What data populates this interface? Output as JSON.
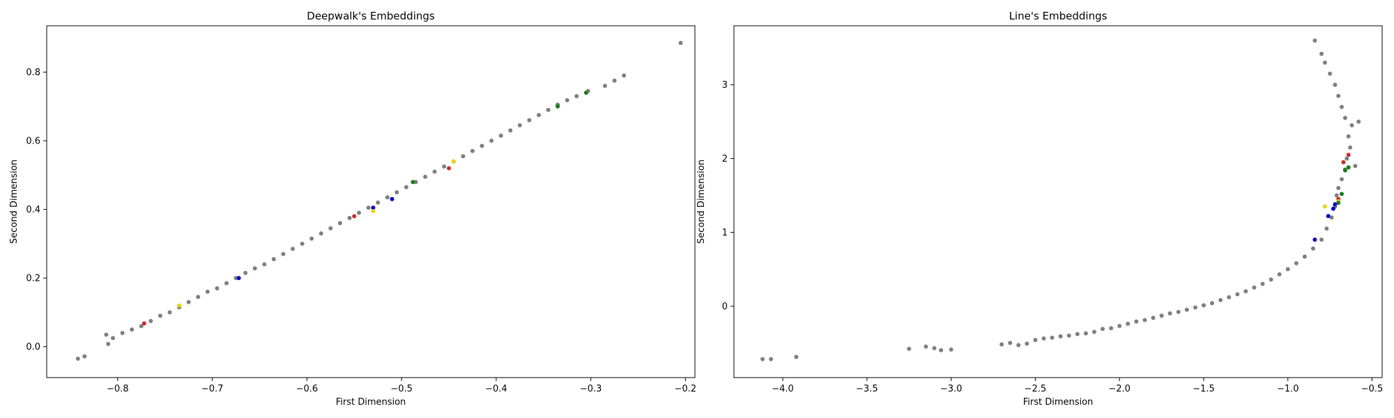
{
  "chart_data": [
    {
      "type": "scatter",
      "title": "Deepwalk's Embeddings",
      "xlabel": "First Dimension",
      "ylabel": "Second Dimension",
      "xlim": [
        -0.875,
        -0.19
      ],
      "ylim": [
        -0.09,
        0.935
      ],
      "xticks": [
        -0.8,
        -0.7,
        -0.6,
        -0.5,
        -0.4,
        -0.3,
        -0.2
      ],
      "xtick_labels": [
        "−0.8",
        "−0.7",
        "−0.6",
        "−0.5",
        "−0.4",
        "−0.3",
        "−0.2"
      ],
      "yticks": [
        0.0,
        0.2,
        0.4,
        0.6,
        0.8
      ],
      "ytick_labels": [
        "0.0",
        "0.2",
        "0.4",
        "0.6",
        "0.8"
      ],
      "grid": false,
      "series": [
        {
          "color": "#7f7f7f",
          "points": [
            [
              -0.842,
              -0.035
            ],
            [
              -0.835,
              -0.028
            ],
            [
              -0.812,
              0.035
            ],
            [
              -0.81,
              0.008
            ],
            [
              -0.805,
              0.025
            ],
            [
              -0.795,
              0.04
            ],
            [
              -0.785,
              0.05
            ],
            [
              -0.775,
              0.06
            ],
            [
              -0.765,
              0.075
            ],
            [
              -0.755,
              0.09
            ],
            [
              -0.745,
              0.1
            ],
            [
              -0.735,
              0.115
            ],
            [
              -0.725,
              0.13
            ],
            [
              -0.715,
              0.145
            ],
            [
              -0.705,
              0.16
            ],
            [
              -0.695,
              0.17
            ],
            [
              -0.685,
              0.185
            ],
            [
              -0.675,
              0.2
            ],
            [
              -0.665,
              0.215
            ],
            [
              -0.655,
              0.228
            ],
            [
              -0.645,
              0.24
            ],
            [
              -0.635,
              0.255
            ],
            [
              -0.625,
              0.27
            ],
            [
              -0.615,
              0.285
            ],
            [
              -0.605,
              0.3
            ],
            [
              -0.595,
              0.315
            ],
            [
              -0.585,
              0.33
            ],
            [
              -0.575,
              0.345
            ],
            [
              -0.565,
              0.36
            ],
            [
              -0.555,
              0.375
            ],
            [
              -0.545,
              0.39
            ],
            [
              -0.535,
              0.405
            ],
            [
              -0.525,
              0.42
            ],
            [
              -0.515,
              0.435
            ],
            [
              -0.505,
              0.45
            ],
            [
              -0.495,
              0.465
            ],
            [
              -0.485,
              0.48
            ],
            [
              -0.475,
              0.495
            ],
            [
              -0.465,
              0.51
            ],
            [
              -0.455,
              0.525
            ],
            [
              -0.445,
              0.54
            ],
            [
              -0.435,
              0.555
            ],
            [
              -0.425,
              0.57
            ],
            [
              -0.415,
              0.585
            ],
            [
              -0.405,
              0.6
            ],
            [
              -0.395,
              0.615
            ],
            [
              -0.385,
              0.63
            ],
            [
              -0.375,
              0.645
            ],
            [
              -0.365,
              0.66
            ],
            [
              -0.355,
              0.675
            ],
            [
              -0.345,
              0.69
            ],
            [
              -0.335,
              0.705
            ],
            [
              -0.325,
              0.718
            ],
            [
              -0.315,
              0.73
            ],
            [
              -0.303,
              0.745
            ],
            [
              -0.285,
              0.76
            ],
            [
              -0.275,
              0.775
            ],
            [
              -0.265,
              0.79
            ],
            [
              -0.205,
              0.885
            ]
          ]
        },
        {
          "color": "#d62728",
          "points": [
            [
              -0.772,
              0.068
            ],
            [
              -0.55,
              0.38
            ],
            [
              -0.45,
              0.52
            ]
          ]
        },
        {
          "color": "#0000cc",
          "points": [
            [
              -0.672,
              0.2
            ],
            [
              -0.53,
              0.405
            ],
            [
              -0.51,
              0.43
            ]
          ]
        },
        {
          "color": "#e6d31a",
          "points": [
            [
              -0.735,
              0.12
            ],
            [
              -0.53,
              0.395
            ],
            [
              -0.445,
              0.54
            ]
          ]
        },
        {
          "color": "#1a7a1a",
          "points": [
            [
              -0.488,
              0.48
            ],
            [
              -0.335,
              0.7
            ],
            [
              -0.305,
              0.74
            ]
          ]
        }
      ]
    },
    {
      "type": "scatter",
      "title": "Line's Embeddings",
      "xlabel": "First Dimension",
      "ylabel": "Second Dimension",
      "xlim": [
        -4.29,
        -0.44
      ],
      "ylim": [
        -0.97,
        3.8
      ],
      "xticks": [
        -4.0,
        -3.5,
        -3.0,
        -2.5,
        -2.0,
        -1.5,
        -1.0,
        -0.5
      ],
      "xtick_labels": [
        "−4.0",
        "−3.5",
        "−3.0",
        "−2.5",
        "−2.0",
        "−1.5",
        "−1.0",
        "−0.5"
      ],
      "yticks": [
        0,
        1,
        2,
        3
      ],
      "ytick_labels": [
        "0",
        "1",
        "2",
        "3"
      ],
      "grid": false,
      "series": [
        {
          "color": "#7f7f7f",
          "points": [
            [
              -4.12,
              -0.72
            ],
            [
              -4.07,
              -0.72
            ],
            [
              -3.92,
              -0.69
            ],
            [
              -3.25,
              -0.58
            ],
            [
              -3.15,
              -0.55
            ],
            [
              -3.1,
              -0.57
            ],
            [
              -3.06,
              -0.6
            ],
            [
              -3.0,
              -0.59
            ],
            [
              -2.7,
              -0.52
            ],
            [
              -2.65,
              -0.5
            ],
            [
              -2.6,
              -0.53
            ],
            [
              -2.55,
              -0.51
            ],
            [
              -2.5,
              -0.46
            ],
            [
              -2.45,
              -0.44
            ],
            [
              -2.4,
              -0.43
            ],
            [
              -2.35,
              -0.41
            ],
            [
              -2.3,
              -0.4
            ],
            [
              -2.25,
              -0.38
            ],
            [
              -2.2,
              -0.37
            ],
            [
              -2.15,
              -0.35
            ],
            [
              -2.1,
              -0.31
            ],
            [
              -2.05,
              -0.3
            ],
            [
              -2.0,
              -0.27
            ],
            [
              -1.95,
              -0.24
            ],
            [
              -1.9,
              -0.21
            ],
            [
              -1.85,
              -0.19
            ],
            [
              -1.8,
              -0.16
            ],
            [
              -1.75,
              -0.13
            ],
            [
              -1.7,
              -0.1
            ],
            [
              -1.65,
              -0.08
            ],
            [
              -1.6,
              -0.05
            ],
            [
              -1.55,
              -0.02
            ],
            [
              -1.5,
              0.01
            ],
            [
              -1.45,
              0.04
            ],
            [
              -1.4,
              0.08
            ],
            [
              -1.35,
              0.12
            ],
            [
              -1.3,
              0.16
            ],
            [
              -1.25,
              0.2
            ],
            [
              -1.2,
              0.25
            ],
            [
              -1.15,
              0.3
            ],
            [
              -1.1,
              0.36
            ],
            [
              -1.05,
              0.43
            ],
            [
              -1.0,
              0.5
            ],
            [
              -0.95,
              0.58
            ],
            [
              -0.9,
              0.67
            ],
            [
              -0.85,
              0.78
            ],
            [
              -0.8,
              0.9
            ],
            [
              -0.77,
              1.05
            ],
            [
              -0.74,
              1.2
            ],
            [
              -0.72,
              1.35
            ],
            [
              -0.71,
              1.5
            ],
            [
              -0.7,
              1.6
            ],
            [
              -0.68,
              1.72
            ],
            [
              -0.66,
              1.85
            ],
            [
              -0.65,
              2.0
            ],
            [
              -0.63,
              2.15
            ],
            [
              -0.64,
              2.3
            ],
            [
              -0.62,
              2.45
            ],
            [
              -0.66,
              2.55
            ],
            [
              -0.68,
              2.7
            ],
            [
              -0.7,
              2.85
            ],
            [
              -0.72,
              3.0
            ],
            [
              -0.75,
              3.15
            ],
            [
              -0.78,
              3.3
            ],
            [
              -0.8,
              3.42
            ],
            [
              -0.84,
              3.6
            ],
            [
              -0.58,
              2.5
            ],
            [
              -0.6,
              1.9
            ]
          ]
        },
        {
          "color": "#d62728",
          "points": [
            [
              -0.67,
              1.95
            ],
            [
              -0.64,
              2.05
            ],
            [
              -0.7,
              1.45
            ]
          ]
        },
        {
          "color": "#0000cc",
          "points": [
            [
              -0.76,
              1.22
            ],
            [
              -0.73,
              1.32
            ],
            [
              -0.72,
              1.38
            ],
            [
              -0.84,
              0.9
            ]
          ]
        },
        {
          "color": "#e6d31a",
          "points": [
            [
              -0.78,
              1.35
            ],
            [
              -0.7,
              1.42
            ]
          ]
        },
        {
          "color": "#1a7a1a",
          "points": [
            [
              -0.7,
              1.4
            ],
            [
              -0.68,
              1.52
            ],
            [
              -0.66,
              1.84
            ],
            [
              -0.64,
              1.88
            ]
          ]
        }
      ]
    }
  ]
}
